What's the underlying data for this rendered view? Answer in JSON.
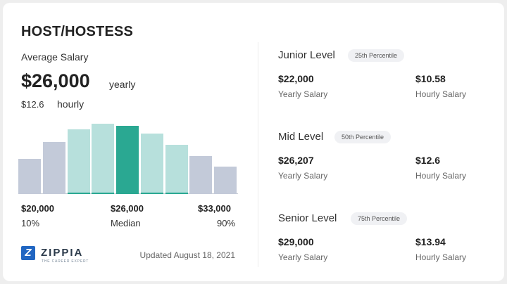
{
  "job_title": "HOST/HOSTESS",
  "average": {
    "label": "Average Salary",
    "yearly_amount": "$26,000",
    "yearly_unit": "yearly",
    "hourly_amount": "$12.6",
    "hourly_unit": "hourly"
  },
  "chart_data": {
    "type": "bar",
    "values": [
      50,
      74,
      92,
      100,
      97,
      86,
      70,
      54,
      39
    ],
    "highlight_index": 4,
    "colors": {
      "outer": "#c3cad9",
      "inner": "#b7e0dc",
      "highlight": "#2aa892",
      "stripe": "#2aa892"
    },
    "axis": {
      "low": "$20,000",
      "mid": "$26,000",
      "high": "$33,000",
      "low_pct": "10%",
      "mid_pct": "Median",
      "high_pct": "90%"
    }
  },
  "footer": {
    "logo_letter": "Z",
    "logo_name": "ZIPPIA",
    "logo_tag": "THE CAREER EXPERT",
    "updated": "Updated August 18, 2021"
  },
  "levels": [
    {
      "title": "Junior Level",
      "percentile": "25th Percentile",
      "yearly": "$22,000",
      "yearly_label": "Yearly Salary",
      "hourly": "$10.58",
      "hourly_label": "Hourly Salary"
    },
    {
      "title": "Mid Level",
      "percentile": "50th Percentile",
      "yearly": "$26,207",
      "yearly_label": "Yearly Salary",
      "hourly": "$12.6",
      "hourly_label": "Hourly Salary"
    },
    {
      "title": "Senior Level",
      "percentile": "75th Percentile",
      "yearly": "$29,000",
      "yearly_label": "Yearly Salary",
      "hourly": "$13.94",
      "hourly_label": "Hourly Salary"
    }
  ]
}
